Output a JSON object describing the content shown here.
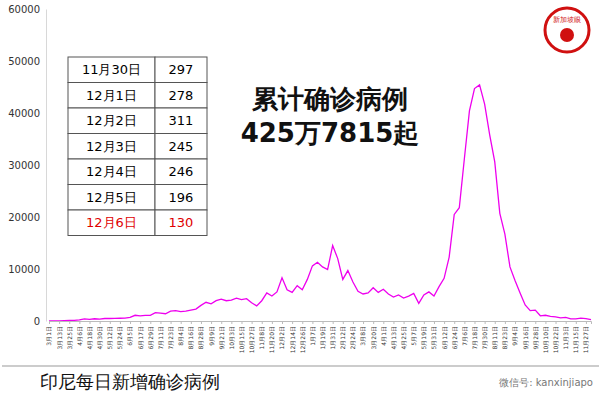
{
  "chart_data": {
    "type": "line",
    "title": "印尼每日新增确诊病例",
    "annotation": [
      "累计确诊病例",
      "425万7815起"
    ],
    "watermark": "微信号: kanxinjiapo",
    "logo": "新加坡眼",
    "color": "#ee00ee",
    "grid": false,
    "ylim": [
      0,
      60000
    ],
    "yticks": [
      0,
      10000,
      20000,
      30000,
      40000,
      50000,
      60000
    ],
    "categories": [
      "3月1日",
      null,
      "3月13日",
      null,
      "3月25日",
      null,
      "4月6日",
      null,
      "4月18日",
      null,
      "4月30日",
      null,
      "5月12日",
      null,
      "5月24日",
      null,
      "6月5日",
      null,
      "6月17日",
      null,
      "6月29日",
      null,
      "7月11日",
      null,
      "7月23日",
      null,
      "8月4日",
      null,
      "8月16日",
      null,
      "8月28日",
      null,
      "9月9日",
      null,
      "9月21日",
      null,
      "10月3日",
      null,
      "10月15日",
      null,
      "10月27日",
      null,
      "11月8日",
      null,
      "11月20日",
      null,
      "12月2日",
      null,
      "12月14日",
      null,
      "12月26日",
      null,
      "1月7日",
      null,
      "1月19日",
      null,
      "1月31日",
      null,
      "2月12日",
      null,
      "2月24日",
      null,
      "3月8日",
      null,
      "3月20日",
      null,
      "4月1日",
      null,
      "4月13日",
      null,
      "4月25日",
      null,
      "5月7日",
      null,
      "5月19日",
      null,
      "5月31日",
      null,
      "6月12日",
      null,
      "6月24日",
      null,
      "7月6日",
      null,
      "7月18日",
      null,
      "7月30日",
      null,
      "8月11日",
      null,
      "8月23日",
      null,
      "9月4日",
      null,
      "9月16日",
      null,
      "9月28日",
      null,
      "10月10日",
      null,
      "10月22日",
      null,
      "11月3日",
      null,
      "11月15日",
      null,
      "11月27日",
      null
    ],
    "values": [
      0,
      2,
      35,
      60,
      100,
      130,
      220,
      400,
      320,
      430,
      350,
      480,
      480,
      500,
      530,
      560,
      700,
      1100,
      1000,
      1100,
      1100,
      1600,
      1500,
      1400,
      1900,
      2000,
      1800,
      1900,
      2100,
      2300,
      3000,
      3600,
      3300,
      3900,
      4200,
      3900,
      4000,
      4400,
      4100,
      4300,
      3500,
      2900,
      3900,
      5400,
      4800,
      5600,
      8300,
      6000,
      5500,
      6800,
      6000,
      8000,
      10600,
      11300,
      10400,
      9900,
      14500,
      12000,
      8000,
      9700,
      7500,
      5700,
      5200,
      5400,
      6400,
      5500,
      6100,
      5200,
      4600,
      5000,
      4400,
      4800,
      5300,
      3400,
      5000,
      5600,
      4800,
      6600,
      8200,
      12300,
      20500,
      21800,
      31200,
      40400,
      44700,
      45400,
      41700,
      35800,
      30600,
      20700,
      16700,
      10400,
      7800,
      5400,
      3100,
      2000,
      2100,
      1000,
      1100,
      900,
      800,
      600,
      700,
      400,
      400,
      550,
      450,
      250
    ],
    "table": {
      "rows": [
        {
          "date": "11月30日",
          "value": 297,
          "color": "#000000"
        },
        {
          "date": "12月1日",
          "value": 278,
          "color": "#000000"
        },
        {
          "date": "12月2日",
          "value": 311,
          "color": "#000000"
        },
        {
          "date": "12月3日",
          "value": 245,
          "color": "#000000"
        },
        {
          "date": "12月4日",
          "value": 246,
          "color": "#000000"
        },
        {
          "date": "12月5日",
          "value": 196,
          "color": "#000000"
        },
        {
          "date": "12月6日",
          "value": 130,
          "color": "#e00000"
        }
      ]
    }
  }
}
